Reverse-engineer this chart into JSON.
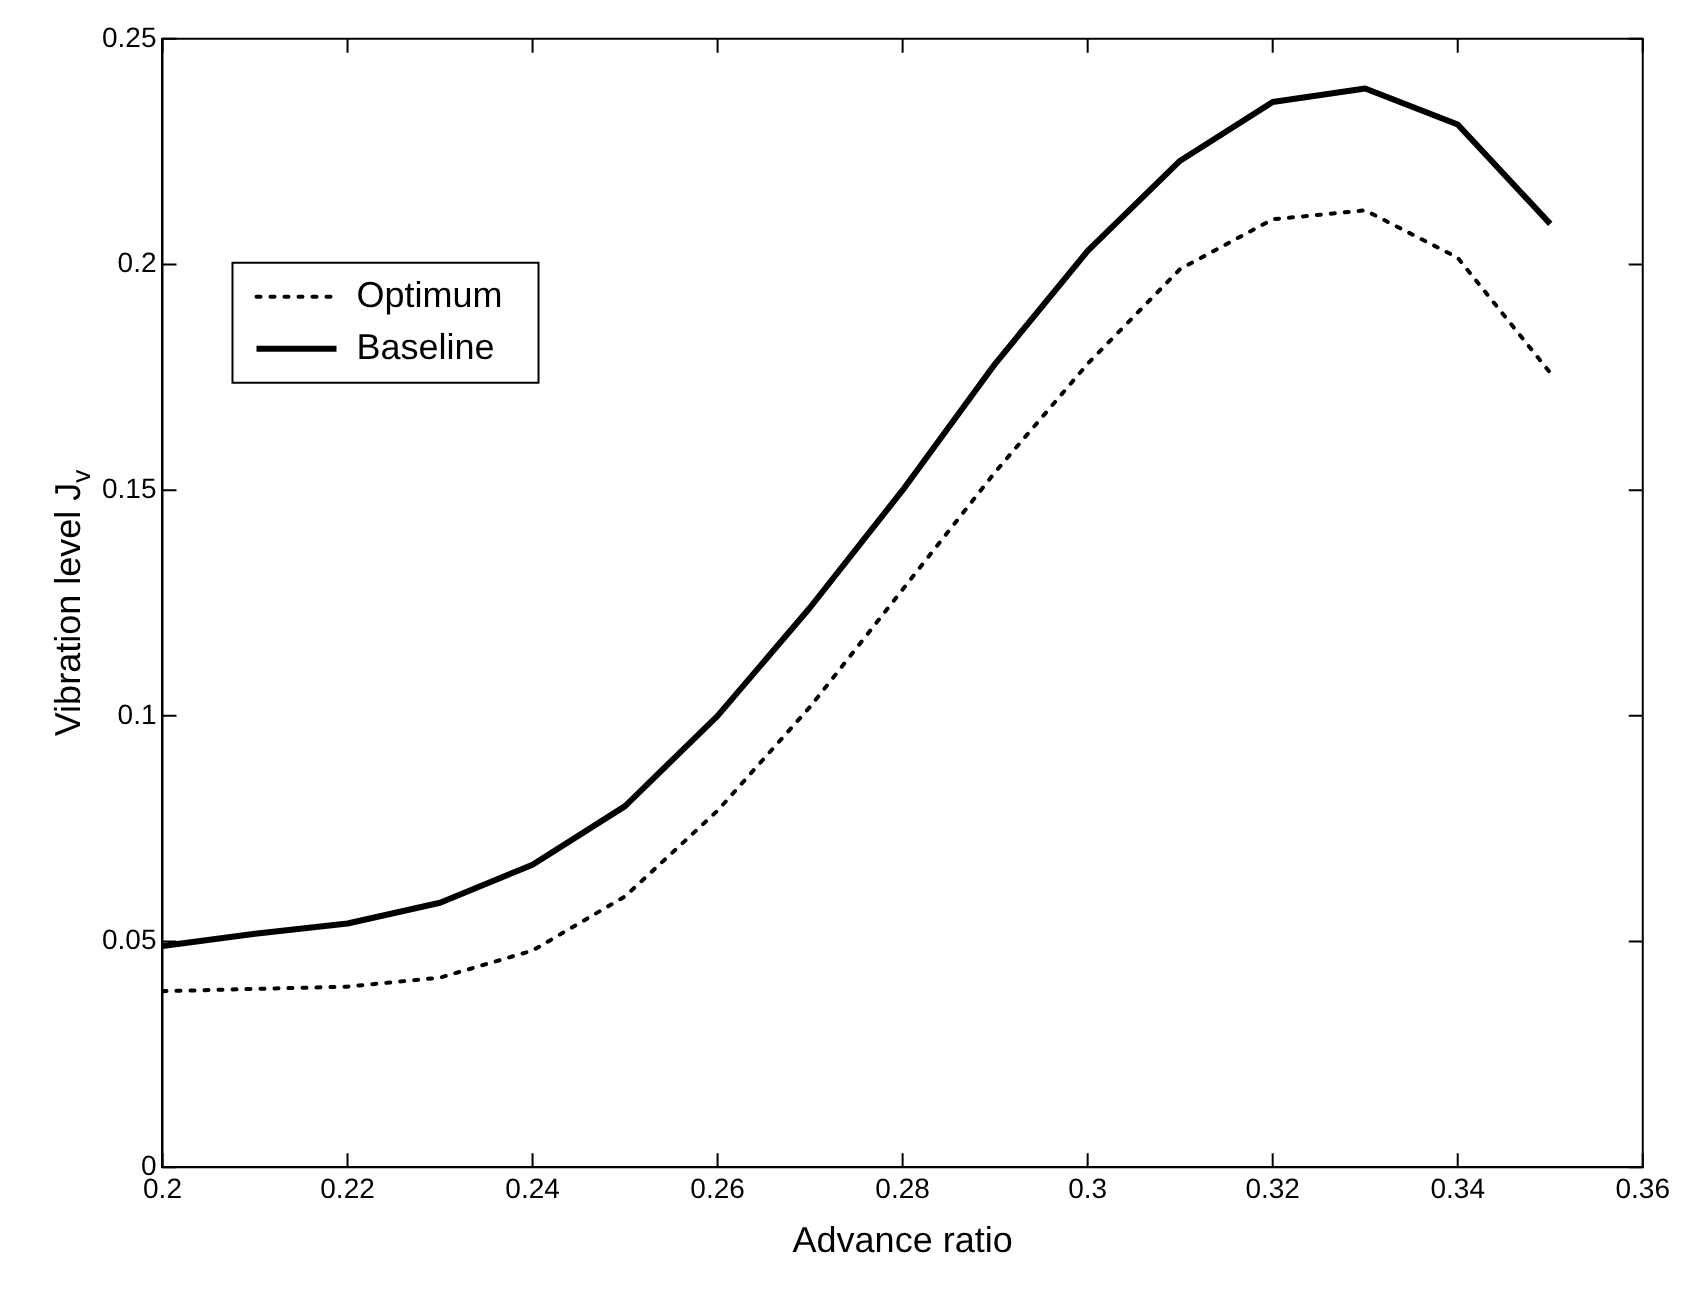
{
  "chart_data": {
    "type": "line",
    "xlabel": "Advance ratio",
    "ylabel": "Vibration level J$_{v}$",
    "x": [
      0.2,
      0.21,
      0.22,
      0.23,
      0.24,
      0.25,
      0.26,
      0.27,
      0.28,
      0.29,
      0.3,
      0.31,
      0.32,
      0.33,
      0.34,
      0.35
    ],
    "series": [
      {
        "name": "Optimum",
        "color": "#000000",
        "line_style": "dotted",
        "values": [
          0.039,
          0.0395,
          0.04,
          0.042,
          0.048,
          0.06,
          0.079,
          0.102,
          0.128,
          0.154,
          0.178,
          0.199,
          0.21,
          0.212,
          0.2015,
          0.176
        ]
      },
      {
        "name": "Baseline",
        "color": "#000000",
        "line_style": "solid",
        "values": [
          0.049,
          0.0517,
          0.054,
          0.0586,
          0.067,
          0.08,
          0.1,
          0.124,
          0.15,
          0.178,
          0.203,
          0.223,
          0.236,
          0.239,
          0.231,
          0.209
        ]
      }
    ],
    "xlim": [
      0.2,
      0.36
    ],
    "xticks": [
      0.2,
      0.22,
      0.24,
      0.26,
      0.28,
      0.3,
      0.32,
      0.34,
      0.36
    ],
    "ylim": [
      0,
      0.25
    ],
    "yticks": [
      0,
      0.05,
      0.1,
      0.15,
      0.2,
      0.25
    ],
    "legend": "top left",
    "marker": "none"
  }
}
